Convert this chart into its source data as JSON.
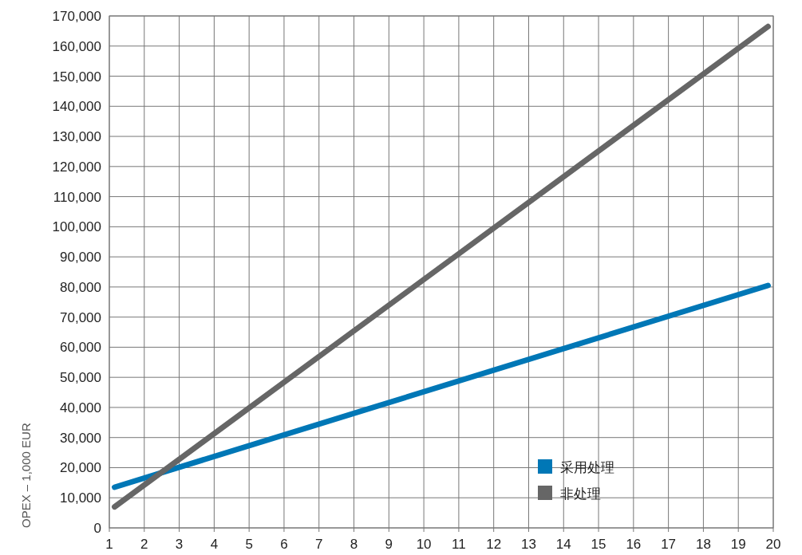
{
  "chart_data": {
    "type": "line",
    "ylabel": "OPEX – 1,000 EUR",
    "x": [
      1.15,
      19.85
    ],
    "series": [
      {
        "name": "采用处理",
        "color": "#0077b6",
        "values": [
          13500,
          80500
        ]
      },
      {
        "name": "非处理",
        "color": "#666666",
        "values": [
          7000,
          166500
        ]
      }
    ],
    "xlim": [
      1,
      20
    ],
    "xticks": [
      1,
      2,
      3,
      4,
      5,
      6,
      7,
      8,
      9,
      10,
      11,
      12,
      13,
      14,
      15,
      16,
      17,
      18,
      19,
      20
    ],
    "ylim": [
      0,
      170000
    ],
    "yticks": [
      {
        "value": 0,
        "label": "0"
      },
      {
        "value": 10000,
        "label": "10,000"
      },
      {
        "value": 20000,
        "label": "20,000"
      },
      {
        "value": 30000,
        "label": "30,000"
      },
      {
        "value": 40000,
        "label": "40,000"
      },
      {
        "value": 50000,
        "label": "50,000"
      },
      {
        "value": 60000,
        "label": "60,000"
      },
      {
        "value": 70000,
        "label": "70,000"
      },
      {
        "value": 80000,
        "label": "80,000"
      },
      {
        "value": 90000,
        "label": "90,000"
      },
      {
        "value": 100000,
        "label": "100,000"
      },
      {
        "value": 110000,
        "label": "110,000"
      },
      {
        "value": 120000,
        "label": "120,000"
      },
      {
        "value": 130000,
        "label": "130,000"
      },
      {
        "value": 140000,
        "label": "140,000"
      },
      {
        "value": 150000,
        "label": "150,000"
      },
      {
        "value": 160000,
        "label": "160,000"
      },
      {
        "value": 170000,
        "label": "170,000"
      }
    ],
    "grid": true,
    "legend": "bottom right"
  }
}
